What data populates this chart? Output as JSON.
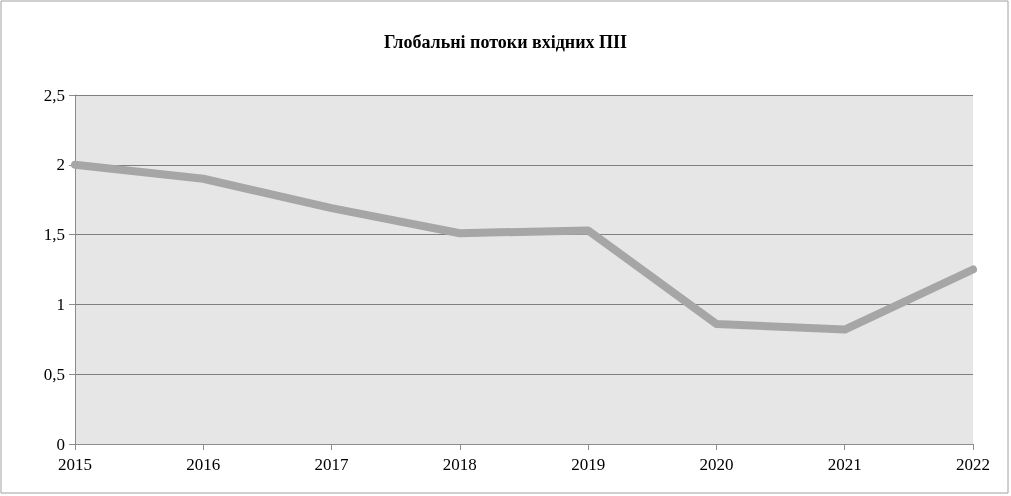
{
  "chart_data": {
    "type": "line",
    "title": "Глобальні потоки вхідних ПІІ",
    "categories": [
      "2015",
      "2016",
      "2017",
      "2018",
      "2019",
      "2020",
      "2021",
      "2022"
    ],
    "series": [
      {
        "color": "#a6a6a6",
        "values": [
          2.0,
          1.9,
          1.69,
          1.51,
          1.53,
          0.86,
          0.82,
          1.25
        ]
      }
    ],
    "ylim": [
      0,
      2.5
    ],
    "yticks": [
      0,
      {
        "value": 0.5,
        "label": "0,5"
      },
      1,
      {
        "value": 1.5,
        "label": "1,5"
      },
      2,
      {
        "value": 2.5,
        "label": "2,5"
      }
    ],
    "grid": "y",
    "line_style": "solid"
  }
}
